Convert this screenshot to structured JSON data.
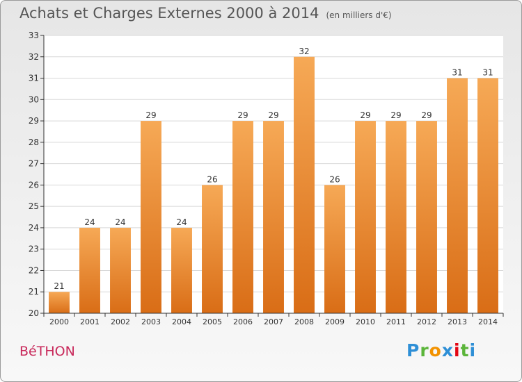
{
  "title": "Achats et Charges Externes 2000 à 2014",
  "unit_label": "(en milliers d'€)",
  "town": "BéTHON",
  "logo": {
    "letters": [
      "P",
      "r",
      "o",
      "x",
      "i",
      "t",
      "i"
    ],
    "colors": [
      "#2e8fd6",
      "#5bb53a",
      "#f29200",
      "#2e8fd6",
      "#e30613",
      "#5bb53a",
      "#2e8fd6"
    ]
  },
  "colors": {
    "bar_top": "#f6a956",
    "bar_bottom": "#d96d16",
    "grid": "#d8d8d8",
    "axis": "#333333",
    "town": "#c8285a"
  },
  "chart_data": {
    "type": "bar",
    "categories": [
      "2000",
      "2001",
      "2002",
      "2003",
      "2004",
      "2005",
      "2006",
      "2007",
      "2008",
      "2009",
      "2010",
      "2011",
      "2012",
      "2013",
      "2014"
    ],
    "values": [
      21,
      24,
      24,
      29,
      24,
      26,
      29,
      29,
      32,
      26,
      29,
      29,
      29,
      31,
      31
    ],
    "ylim": [
      20,
      33
    ],
    "yticks": [
      20,
      21,
      22,
      23,
      24,
      25,
      26,
      27,
      28,
      29,
      30,
      31,
      32,
      33
    ],
    "grid": true,
    "data_labels": true
  }
}
